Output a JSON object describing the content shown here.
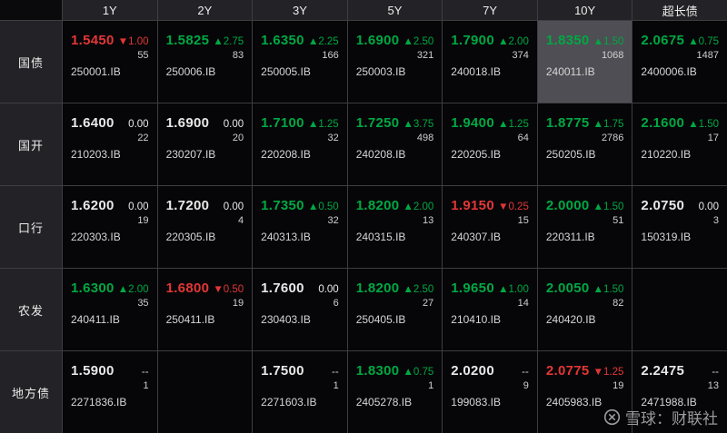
{
  "colors": {
    "up": "#00a843",
    "down": "#e23636",
    "flat": "#e8e8e8",
    "highlight": "#4e4e54",
    "grid_line": "#3e3e42",
    "header_bg": "#232327",
    "cell_bg": "#060608"
  },
  "table": {
    "columns": [
      "1Y",
      "2Y",
      "3Y",
      "5Y",
      "7Y",
      "10Y",
      "超长债"
    ],
    "rows": [
      {
        "label": "国债",
        "cells": [
          {
            "rate": "1.5450",
            "dir": "down",
            "change": "▼1.00",
            "vol": "55",
            "code": "250001.IB"
          },
          {
            "rate": "1.5825",
            "dir": "up",
            "change": "▲2.75",
            "vol": "83",
            "code": "250006.IB"
          },
          {
            "rate": "1.6350",
            "dir": "up",
            "change": "▲2.25",
            "vol": "166",
            "code": "250005.IB"
          },
          {
            "rate": "1.6900",
            "dir": "up",
            "change": "▲2.50",
            "vol": "321",
            "code": "250003.IB"
          },
          {
            "rate": "1.7900",
            "dir": "up",
            "change": "▲2.00",
            "vol": "374",
            "code": "240018.IB"
          },
          {
            "rate": "1.8350",
            "dir": "up",
            "change": "▲1.50",
            "vol": "1068",
            "code": "240011.IB",
            "highlight": true
          },
          {
            "rate": "2.0675",
            "dir": "up",
            "change": "▲0.75",
            "vol": "1487",
            "code": "2400006.IB"
          }
        ]
      },
      {
        "label": "国开",
        "cells": [
          {
            "rate": "1.6400",
            "dir": "flat",
            "change": "0.00",
            "vol": "22",
            "code": "210203.IB"
          },
          {
            "rate": "1.6900",
            "dir": "flat",
            "change": "0.00",
            "vol": "20",
            "code": "230207.IB"
          },
          {
            "rate": "1.7100",
            "dir": "up",
            "change": "▲1.25",
            "vol": "32",
            "code": "220208.IB"
          },
          {
            "rate": "1.7250",
            "dir": "up",
            "change": "▲3.75",
            "vol": "498",
            "code": "240208.IB"
          },
          {
            "rate": "1.9400",
            "dir": "up",
            "change": "▲1.25",
            "vol": "64",
            "code": "220205.IB"
          },
          {
            "rate": "1.8775",
            "dir": "up",
            "change": "▲1.75",
            "vol": "2786",
            "code": "250205.IB"
          },
          {
            "rate": "2.1600",
            "dir": "up",
            "change": "▲1.50",
            "vol": "17",
            "code": "210220.IB"
          }
        ]
      },
      {
        "label": "口行",
        "cells": [
          {
            "rate": "1.6200",
            "dir": "flat",
            "change": "0.00",
            "vol": "19",
            "code": "220303.IB"
          },
          {
            "rate": "1.7200",
            "dir": "flat",
            "change": "0.00",
            "vol": "4",
            "code": "220305.IB"
          },
          {
            "rate": "1.7350",
            "dir": "up",
            "change": "▲0.50",
            "vol": "32",
            "code": "240313.IB"
          },
          {
            "rate": "1.8200",
            "dir": "up",
            "change": "▲2.00",
            "vol": "13",
            "code": "240315.IB"
          },
          {
            "rate": "1.9150",
            "dir": "down",
            "change": "▼0.25",
            "vol": "15",
            "code": "240307.IB"
          },
          {
            "rate": "2.0000",
            "dir": "up",
            "change": "▲1.50",
            "vol": "51",
            "code": "220311.IB"
          },
          {
            "rate": "2.0750",
            "dir": "flat",
            "change": "0.00",
            "vol": "3",
            "code": "150319.IB"
          }
        ]
      },
      {
        "label": "农发",
        "cells": [
          {
            "rate": "1.6300",
            "dir": "up",
            "change": "▲2.00",
            "vol": "35",
            "code": "240411.IB"
          },
          {
            "rate": "1.6800",
            "dir": "down",
            "change": "▼0.50",
            "vol": "19",
            "code": "250411.IB"
          },
          {
            "rate": "1.7600",
            "dir": "flat",
            "change": "0.00",
            "vol": "6",
            "code": "230403.IB"
          },
          {
            "rate": "1.8200",
            "dir": "up",
            "change": "▲2.50",
            "vol": "27",
            "code": "250405.IB"
          },
          {
            "rate": "1.9650",
            "dir": "up",
            "change": "▲1.00",
            "vol": "14",
            "code": "210410.IB"
          },
          {
            "rate": "2.0050",
            "dir": "up",
            "change": "▲1.50",
            "vol": "82",
            "code": "240420.IB"
          },
          null
        ]
      },
      {
        "label": "地方债",
        "cells": [
          {
            "rate": "1.5900",
            "dir": "none",
            "change": "--",
            "vol": "1",
            "code": "2271836.IB"
          },
          null,
          {
            "rate": "1.7500",
            "dir": "none",
            "change": "--",
            "vol": "1",
            "code": "2271603.IB"
          },
          {
            "rate": "1.8300",
            "dir": "up",
            "change": "▲0.75",
            "vol": "1",
            "code": "2405278.IB"
          },
          {
            "rate": "2.0200",
            "dir": "none",
            "change": "--",
            "vol": "9",
            "code": "199083.IB"
          },
          {
            "rate": "2.0775",
            "dir": "down",
            "change": "▼1.25",
            "vol": "19",
            "code": "2405983.IB"
          },
          {
            "rate": "2.2475",
            "dir": "none",
            "change": "--",
            "vol": "13",
            "code": "2471988.IB"
          }
        ]
      }
    ]
  },
  "watermark": {
    "logo": "xueqiu-circle-x-logo",
    "text": "雪球：财联社"
  }
}
